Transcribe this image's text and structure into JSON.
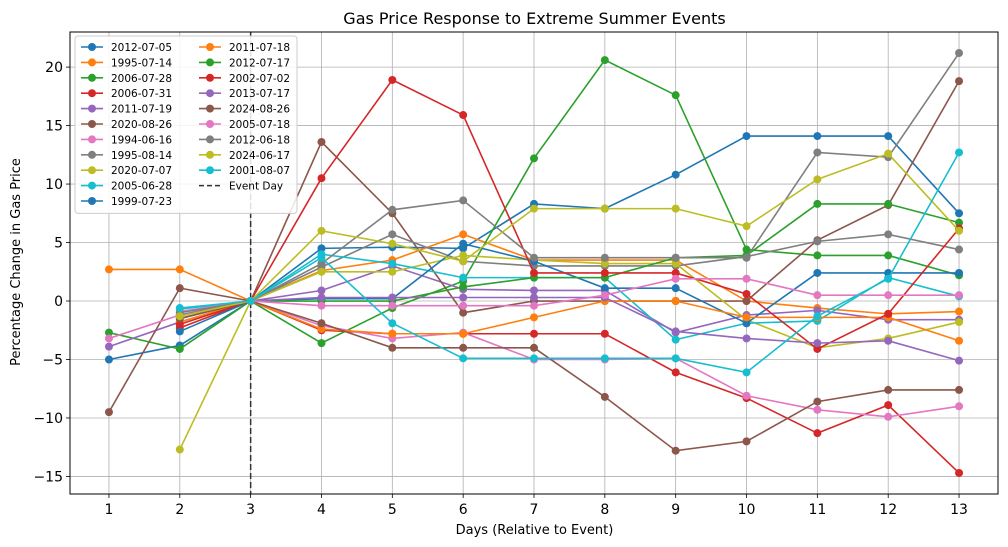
{
  "chart_data": {
    "type": "line",
    "title": "Gas Price Response to Extreme Summer Events",
    "xlabel": "Days (Relative to Event)",
    "ylabel": "Percentage Change in Gas Price",
    "x": [
      1,
      2,
      3,
      4,
      5,
      6,
      7,
      8,
      9,
      10,
      11,
      12,
      13
    ],
    "xlim": [
      0.45,
      13.55
    ],
    "ylim": [
      -16.5,
      23
    ],
    "yticks": [
      -15,
      -10,
      -5,
      0,
      5,
      10,
      15,
      20
    ],
    "grid": true,
    "legend_placement": "top-left",
    "legend_columns": 2,
    "event_day": 3,
    "event_day_label": "Event Day",
    "series": [
      {
        "name": "2012-07-05",
        "color": "#1f77b4",
        "values": [
          -5.0,
          -3.8,
          0,
          4.5,
          4.6,
          4.5,
          8.3,
          7.9,
          10.8,
          14.1,
          14.1,
          14.1,
          7.5
        ]
      },
      {
        "name": "1995-07-14",
        "color": "#ff7f0e",
        "values": [
          2.7,
          2.7,
          0,
          2.6,
          3.5,
          5.7,
          3.5,
          3.5,
          3.5,
          0.0,
          -0.6,
          -1.1,
          -0.9
        ]
      },
      {
        "name": "2006-07-28",
        "color": "#2ca02c",
        "values": [
          -2.7,
          -4.1,
          0,
          -3.6,
          -0.6,
          1.7,
          12.2,
          20.6,
          17.6,
          4.4,
          3.9,
          3.9,
          2.2
        ]
      },
      {
        "name": "2006-07-31",
        "color": "#d62728",
        "values": [
          null,
          -2.3,
          0,
          -2.5,
          -2.8,
          -2.8,
          -2.8,
          -2.8,
          -6.1,
          -8.3,
          -11.3,
          -8.9,
          -14.7
        ]
      },
      {
        "name": "2011-07-19",
        "color": "#9467bd",
        "values": [
          -3.9,
          -1.8,
          0,
          0.9,
          3.0,
          1.0,
          0.9,
          0.9,
          -2.7,
          -1.2,
          -0.8,
          -1.6,
          -1.6
        ]
      },
      {
        "name": "2020-08-26",
        "color": "#8c564b",
        "values": [
          -9.5,
          1.1,
          0,
          13.6,
          7.5,
          -1.0,
          0.0,
          0.0,
          0.0,
          0.0,
          5.2,
          8.2,
          18.8
        ]
      },
      {
        "name": "1994-06-16",
        "color": "#e377c2",
        "values": [
          -3.2,
          -1.2,
          0,
          -2.1,
          -3.2,
          -2.7,
          -5.0,
          -5.0,
          -4.9,
          -8.1,
          -9.3,
          -9.9,
          -9.0
        ]
      },
      {
        "name": "1995-08-14",
        "color": "#7f7f7f",
        "values": [
          null,
          -1.2,
          0,
          2.9,
          5.7,
          3.4,
          3.0,
          3.0,
          3.0,
          3.8,
          5.1,
          5.7,
          4.4
        ]
      },
      {
        "name": "2020-07-07",
        "color": "#bcbd22",
        "values": [
          null,
          -12.7,
          0,
          2.5,
          2.5,
          3.9,
          3.5,
          3.2,
          3.2,
          -1.6,
          -4.0,
          -3.2,
          -1.8
        ]
      },
      {
        "name": "2005-06-28",
        "color": "#17becf",
        "values": [
          null,
          -0.7,
          0,
          4.0,
          3.2,
          2.0,
          2.0,
          2.0,
          -3.3,
          -1.9,
          -1.7,
          2.0,
          0.4
        ]
      },
      {
        "name": "1999-07-23",
        "color": "#1f77b4",
        "values": [
          null,
          -2.6,
          0,
          0.2,
          0.2,
          4.9,
          3.4,
          1.1,
          1.1,
          -1.9,
          2.4,
          2.4,
          2.4
        ]
      },
      {
        "name": "2011-07-18",
        "color": "#ff7f0e",
        "values": [
          null,
          -1.8,
          0,
          -2.4,
          -2.8,
          -2.8,
          -1.4,
          0.0,
          0.0,
          -1.4,
          -1.4,
          -1.4,
          -3.4
        ]
      },
      {
        "name": "2012-07-17",
        "color": "#2ca02c",
        "values": [
          null,
          -1.5,
          0,
          0.0,
          0.0,
          1.2,
          2.0,
          2.0,
          3.7,
          3.9,
          8.3,
          8.3,
          6.7
        ]
      },
      {
        "name": "2002-07-02",
        "color": "#d62728",
        "values": [
          null,
          -2.0,
          0,
          10.5,
          18.9,
          15.9,
          2.4,
          2.4,
          2.4,
          0.6,
          -4.1,
          -1.1,
          6.2
        ]
      },
      {
        "name": "2013-07-17",
        "color": "#9467bd",
        "values": [
          null,
          -1.2,
          0,
          0.3,
          0.3,
          0.3,
          0.3,
          0.3,
          -2.6,
          -3.2,
          -3.6,
          -3.4,
          -5.1
        ]
      },
      {
        "name": "2024-08-26",
        "color": "#8c564b",
        "values": [
          null,
          -1.5,
          0,
          -1.9,
          -4.0,
          -4.0,
          -4.0,
          -8.2,
          -12.8,
          -12.0,
          -8.6,
          -7.6,
          -7.6
        ]
      },
      {
        "name": "2005-07-18",
        "color": "#e377c2",
        "values": [
          null,
          -0.9,
          0,
          -0.4,
          -0.4,
          -0.4,
          -0.4,
          0.5,
          1.9,
          1.9,
          0.5,
          0.5,
          0.5
        ]
      },
      {
        "name": "2012-06-18",
        "color": "#7f7f7f",
        "values": [
          null,
          -1.0,
          0,
          3.2,
          7.8,
          8.6,
          3.7,
          3.7,
          3.7,
          3.7,
          12.7,
          12.3,
          21.2
        ]
      },
      {
        "name": "2024-06-17",
        "color": "#bcbd22",
        "values": [
          null,
          -1.3,
          0,
          6.0,
          4.9,
          3.4,
          7.9,
          7.9,
          7.9,
          6.4,
          10.4,
          12.6,
          6.0
        ]
      },
      {
        "name": "2001-08-07",
        "color": "#17becf",
        "values": [
          null,
          -0.6,
          0,
          3.7,
          -1.9,
          -4.9,
          -4.9,
          -4.9,
          -4.9,
          -6.1,
          -1.3,
          1.9,
          12.7
        ]
      }
    ]
  }
}
